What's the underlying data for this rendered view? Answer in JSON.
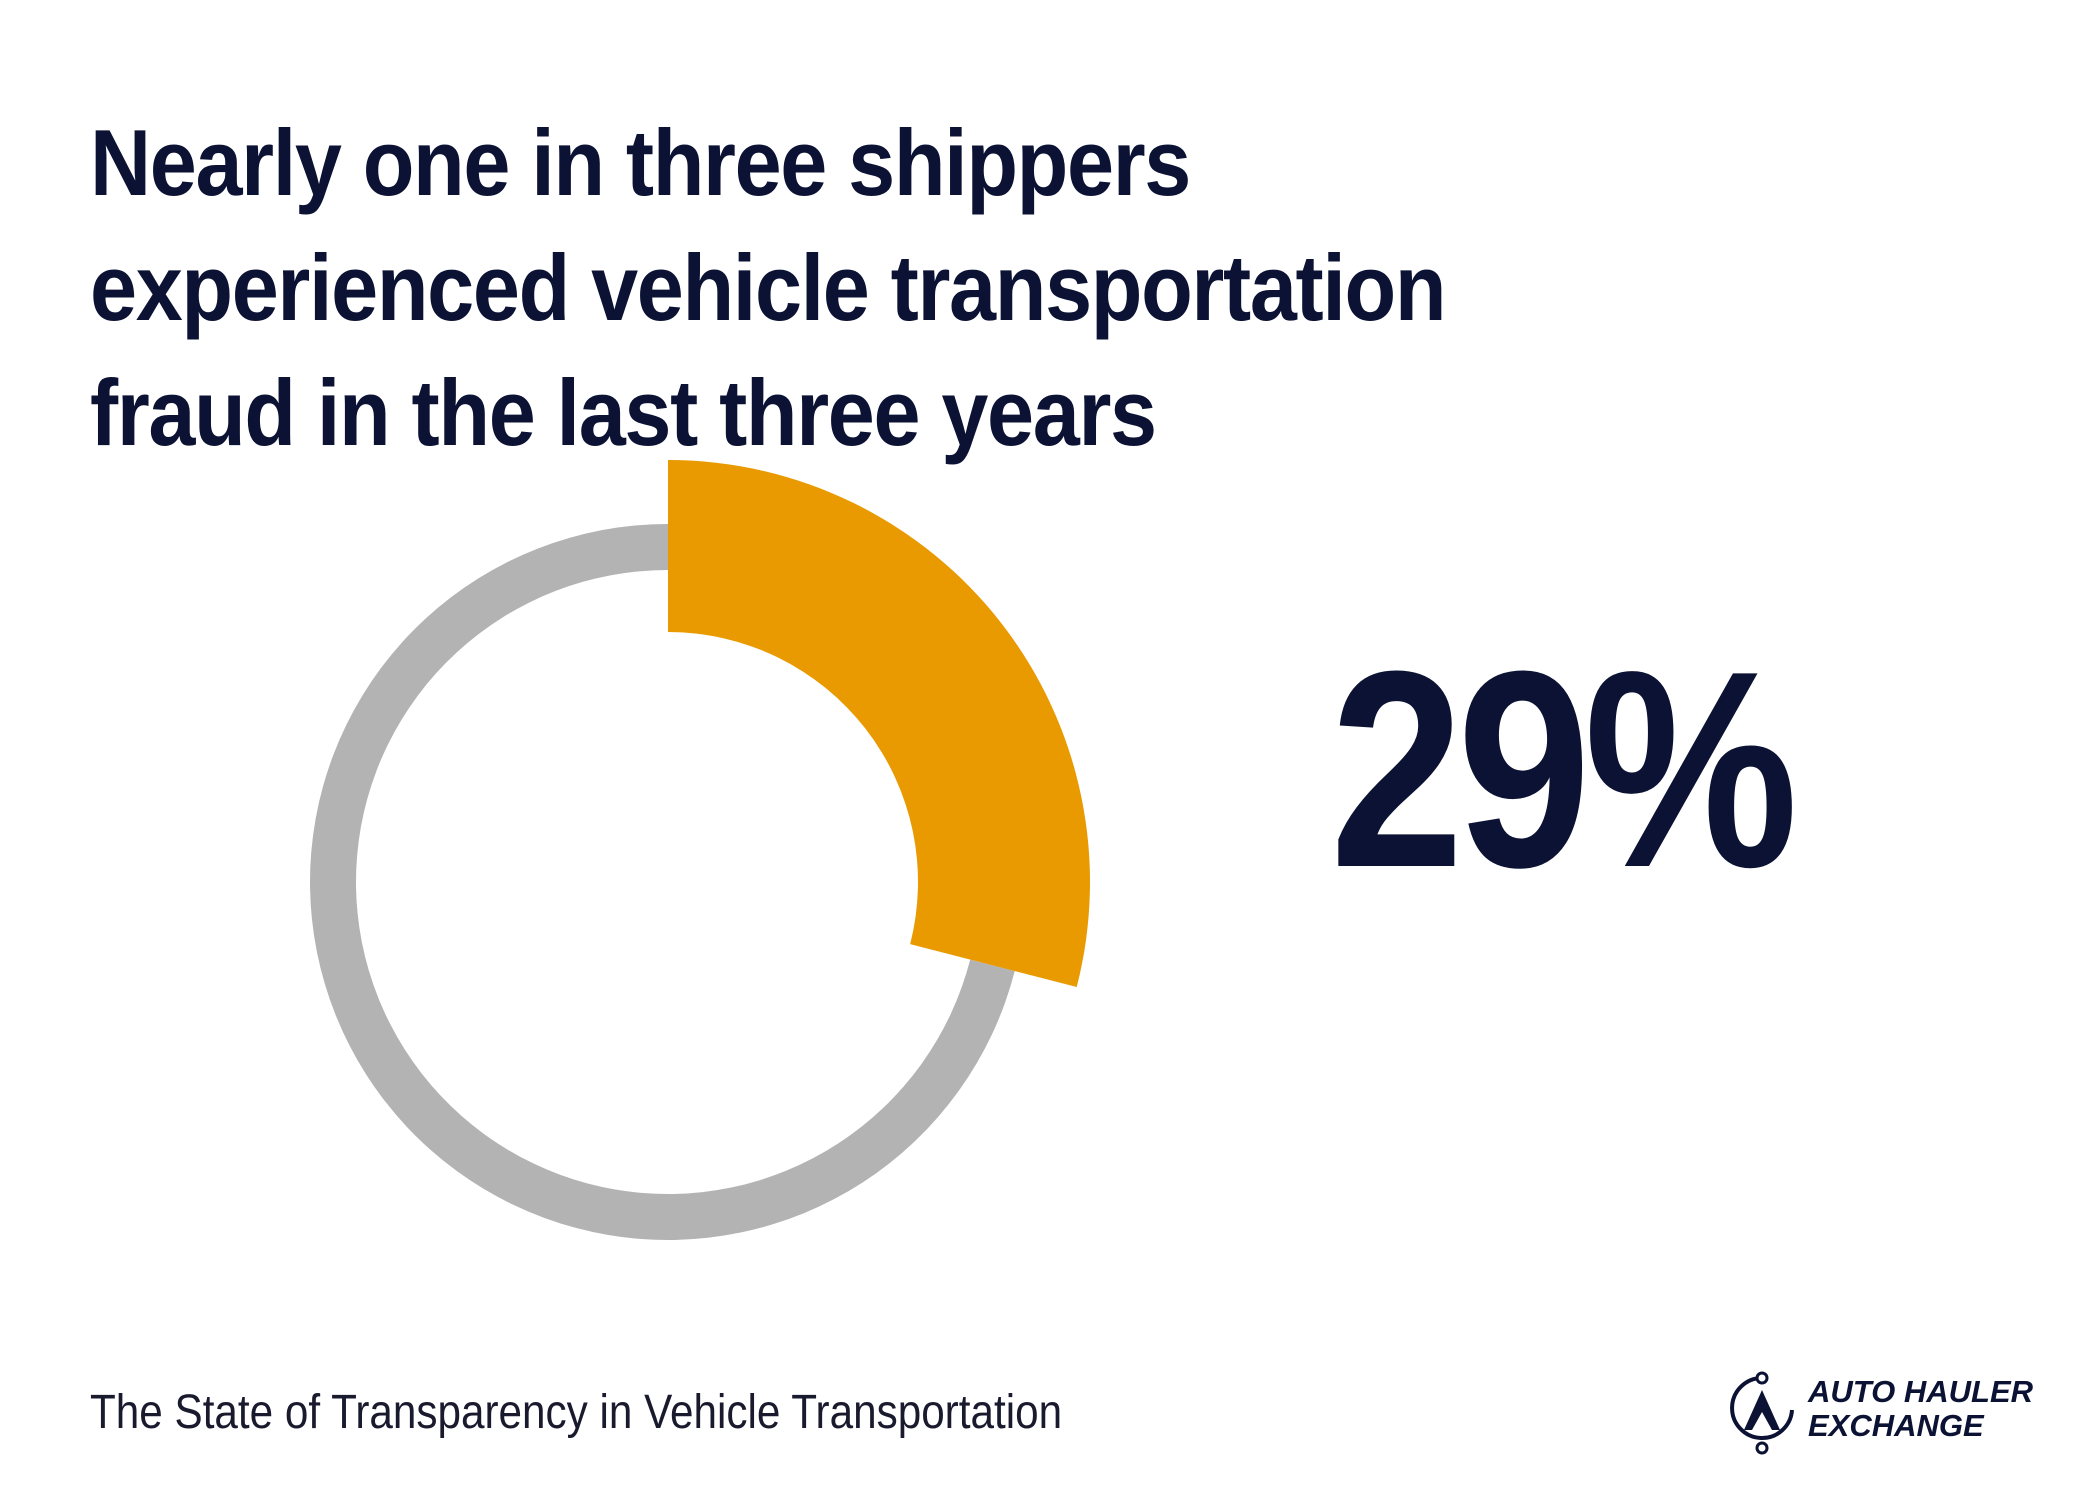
{
  "header": {
    "title": "Nearly one in three shippers experienced vehicle transportation fraud in the last three years"
  },
  "chart_data": {
    "type": "pie",
    "value_label": "29%",
    "slices": [
      {
        "label": "",
        "value": 29,
        "color": "#e89a00"
      },
      {
        "label": "",
        "value": 71,
        "color": "#b3b3b3"
      }
    ]
  },
  "footer": {
    "source": "The State of Transparency in Vehicle Transportation"
  },
  "logo": {
    "line1": "AUTO HAULER",
    "line2": "EXCHANGE",
    "icon": "car-logo-icon"
  },
  "colors": {
    "accent": "#e89a00",
    "track": "#b3b3b3",
    "text": "#0b1233"
  }
}
